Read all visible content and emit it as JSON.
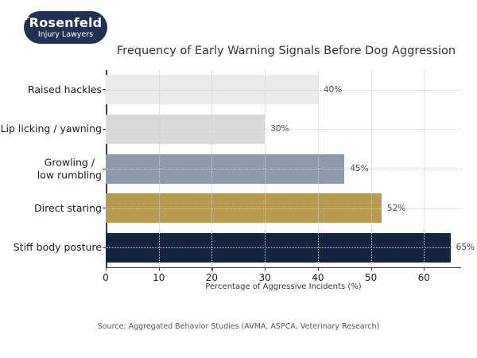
{
  "logo": {
    "brand": "Rosenfeld",
    "tagline": "Injury Lawyers",
    "background_color": "#223053",
    "text_color": "#ffffff"
  },
  "chart_data": {
    "type": "bar",
    "orientation": "horizontal",
    "title": "Frequency of Early Warning Signals Before Dog Aggression",
    "categories": [
      "Raised hackles",
      "Lip licking / yawning",
      "Growling /\nlow rumbling",
      "Direct staring",
      "Stiff body posture"
    ],
    "values": [
      40,
      30,
      45,
      52,
      65
    ],
    "value_labels": [
      "40%",
      "30%",
      "45%",
      "52%",
      "65%"
    ],
    "bar_colors": [
      "#ebebeb",
      "#d9d9d9",
      "#8e9aab",
      "#b79952",
      "#16243f"
    ],
    "xlabel": "Percentage of Aggressive Incidents (%)",
    "xticks": [
      "0",
      "10",
      "20",
      "30",
      "40",
      "50",
      "60"
    ],
    "xtick_values": [
      0,
      10,
      20,
      30,
      40,
      50,
      60
    ],
    "xlim": [
      0,
      67
    ],
    "grid": "dotted",
    "legend": "none",
    "source_note": "Source: Aggregated Behavior Studies (AVMA, ASPCA, Veterinary Research)"
  }
}
